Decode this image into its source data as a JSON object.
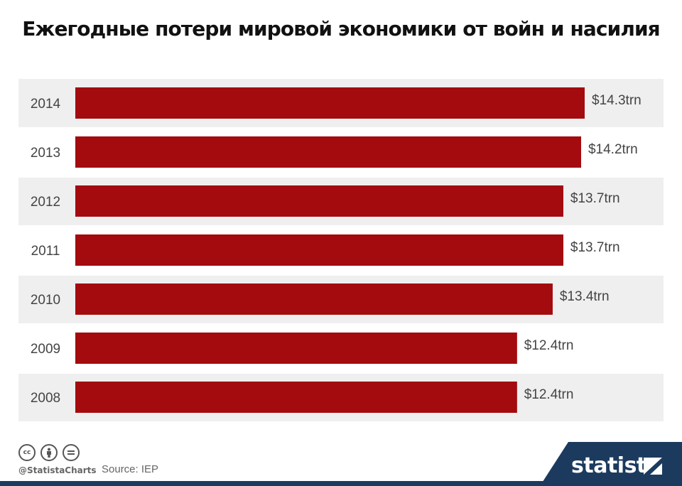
{
  "title": "Ежегодные потери мировой экономики от войн и насилия",
  "footer": {
    "handle": "@StatistaCharts",
    "source": "Source: IEP",
    "brand": "statista",
    "icons": [
      "cc-icon",
      "by-icon",
      "nd-icon"
    ]
  },
  "colors": {
    "bar": "#a30b0e",
    "band": "#efefef",
    "silhouette": "#3f3f3f",
    "label": "#444444",
    "brand": "#1b3a5e"
  },
  "chart_data": {
    "type": "bar",
    "orientation": "horizontal",
    "categories": [
      "2014",
      "2013",
      "2012",
      "2011",
      "2010",
      "2009",
      "2008"
    ],
    "values": [
      14.3,
      14.2,
      13.7,
      13.7,
      13.4,
      12.4,
      12.4
    ],
    "data_labels": [
      "$14.3trn",
      "$14.2trn",
      "$13.7trn",
      "$13.7trn",
      "$13.4trn",
      "$12.4trn",
      "$12.4trn"
    ],
    "unit": "trn USD",
    "xlim": [
      0,
      14.3
    ],
    "grid": false,
    "legend": "none"
  }
}
